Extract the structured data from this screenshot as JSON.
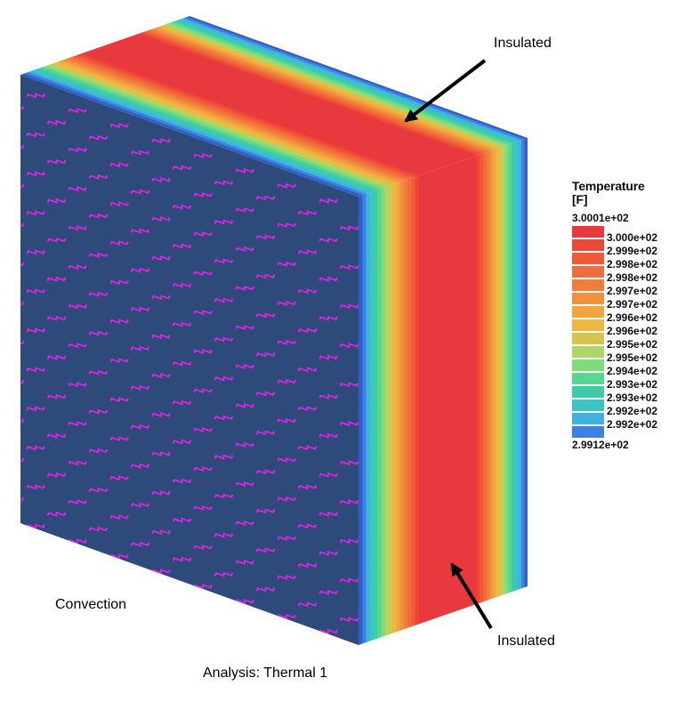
{
  "annotations": {
    "insulated_top": "Insulated",
    "insulated_bottom": "Insulated",
    "convection": "Convection",
    "analysis_caption": "Analysis: Thermal 1"
  },
  "legend": {
    "title": "Temperature",
    "unit_label": "[F]",
    "max_label": "3.0001e+02",
    "min_label": "2.9912e+02",
    "boundary_labels": [
      "3.000e+02",
      "2.999e+02",
      "2.998e+02",
      "2.998e+02",
      "2.997e+02",
      "2.997e+02",
      "2.996e+02",
      "2.996e+02",
      "2.995e+02",
      "2.995e+02",
      "2.994e+02",
      "2.993e+02",
      "2.993e+02",
      "2.992e+02",
      "2.992e+02"
    ],
    "swatch_colors_hot_to_cold": [
      "#e8393f",
      "#ed4837",
      "#f05a38",
      "#f16c3c",
      "#f07d39",
      "#f1913e",
      "#f0a53e",
      "#eeb83e",
      "#d5c44f",
      "#aad766",
      "#7fdc7a",
      "#55d794",
      "#3fcba9",
      "#3cc3c4",
      "#40b2df",
      "#3b81e8"
    ]
  },
  "colors": {
    "background": "#ffffff",
    "front_face": "#2d4a7b",
    "edge_cold": "#3060c0",
    "convection_symbol": "#e522e5",
    "arrow": "#000000",
    "label_text": "#000000"
  },
  "chart_data": {
    "type": "heatmap",
    "title": "Temperature [F]",
    "legend_title": "Temperature",
    "unit": "F",
    "max_value": 300.01,
    "min_value": 299.12,
    "max_label": "3.0001e+02",
    "min_label": "2.9912e+02",
    "num_contour_bands": 16,
    "contour_boundary_labels_hot_to_cold": [
      "3.000e+02",
      "2.999e+02",
      "2.998e+02",
      "2.998e+02",
      "2.997e+02",
      "2.997e+02",
      "2.996e+02",
      "2.996e+02",
      "2.995e+02",
      "2.995e+02",
      "2.994e+02",
      "2.993e+02",
      "2.993e+02",
      "2.992e+02",
      "2.992e+02"
    ],
    "band_colors_hot_to_cold": [
      "#e8393f",
      "#ed4837",
      "#f05a38",
      "#f16c3c",
      "#f07d39",
      "#f1913e",
      "#f0a53e",
      "#eeb83e",
      "#d5c44f",
      "#aad766",
      "#7fdc7a",
      "#55d794",
      "#3fcba9",
      "#3cc3c4",
      "#40b2df",
      "#3b81e8"
    ],
    "geometry": "3D rectangular slab, isometric view; temperature is coldest (299.12 F) at front and back convection surfaces and hottest (300.01 F) at the mid-thickness, shown as symmetric rainbow contour bands on the insulated top and side faces",
    "boundary_conditions": [
      {
        "face": "front",
        "condition": "Convection"
      },
      {
        "face": "top",
        "condition": "Insulated"
      },
      {
        "face": "right",
        "condition": "Insulated"
      }
    ],
    "caption": "Analysis: Thermal 1",
    "legend_position": "right"
  }
}
